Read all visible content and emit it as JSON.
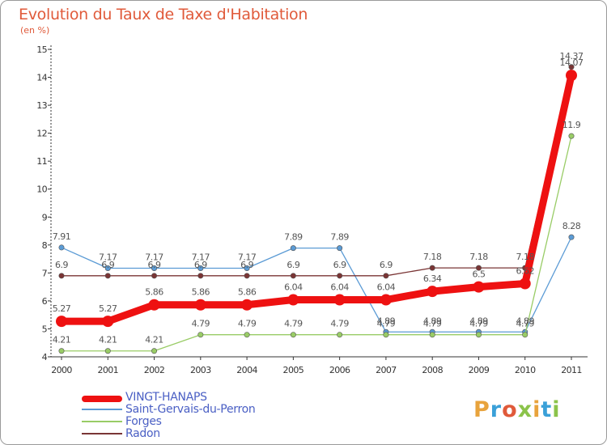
{
  "title": "Evolution du Taux de Taxe d'Habitation",
  "subtitle": "(en %)",
  "logo": {
    "text": "Proxiti",
    "colors": [
      "#e8a33c",
      "#3aa0d8",
      "#e05a3a",
      "#8bc34a",
      "#e8a33c",
      "#3aa0d8",
      "#8bc34a"
    ]
  },
  "chart_data": {
    "type": "line",
    "title": "Evolution du Taux de Taxe d'Habitation",
    "ylabel": "(en %)",
    "x": [
      "2000",
      "2001",
      "2002",
      "2003",
      "2004",
      "2005",
      "2006",
      "2007",
      "2008",
      "2009",
      "2010",
      "2011"
    ],
    "ylim": [
      4,
      15
    ],
    "yticks": [
      "4",
      "5",
      "6",
      "7",
      "8",
      "9",
      "10",
      "11",
      "12",
      "13",
      "14",
      "15"
    ],
    "legend_position": "bottom-left",
    "series": [
      {
        "name": "Saint-Gervais-du-Perron",
        "color": "#5b9bd5",
        "values": [
          7.91,
          7.17,
          7.17,
          7.17,
          7.17,
          7.89,
          7.89,
          4.89,
          4.89,
          4.89,
          4.89,
          8.28
        ],
        "labels": [
          "7.91",
          "7.17",
          "7.17",
          "7.17",
          "7.17",
          "7.89",
          "7.89",
          "4.89",
          "4.89",
          "4.89",
          "4.89",
          "8.28"
        ]
      },
      {
        "name": "Forges",
        "color": "#99cc66",
        "values": [
          4.21,
          4.21,
          4.21,
          4.79,
          4.79,
          4.79,
          4.79,
          4.79,
          4.79,
          4.79,
          4.79,
          11.9
        ],
        "labels": [
          "4.21",
          "4.21",
          "4.21",
          "4.79",
          "4.79",
          "4.79",
          "4.79",
          "4.79",
          "4.79",
          "4.79",
          "4.79",
          "11.9"
        ]
      },
      {
        "name": "Radon",
        "color": "#7a3535",
        "values": [
          6.9,
          6.9,
          6.9,
          6.9,
          6.9,
          6.9,
          6.9,
          6.9,
          7.18,
          7.18,
          7.18,
          14.37
        ],
        "labels": [
          "6.9",
          "6.9",
          "6.9",
          "6.9",
          "6.9",
          "6.9",
          "6.9",
          "6.9",
          "7.18",
          "7.18",
          "7.18",
          "14.37"
        ]
      },
      {
        "name": "VINGT-HANAPS",
        "color": "#ee1111",
        "values": [
          5.27,
          5.27,
          5.86,
          5.86,
          5.86,
          6.04,
          6.04,
          6.04,
          6.34,
          6.5,
          6.62,
          14.07
        ],
        "labels": [
          "5.27",
          "5.27",
          "5.86",
          "5.86",
          "5.86",
          "6.04",
          "6.04",
          "6.04",
          "6.34",
          "6.5",
          "6.62",
          "14.07"
        ]
      }
    ],
    "legend": [
      "VINGT-HANAPS",
      "Saint-Gervais-du-Perron",
      "Forges",
      "Radon"
    ]
  }
}
